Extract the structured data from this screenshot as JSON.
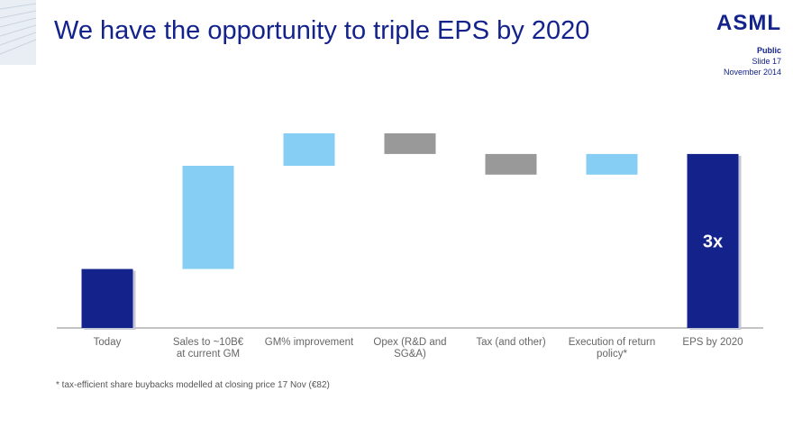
{
  "slide": {
    "title": "We have the opportunity to triple EPS by 2020",
    "logo": "ASML",
    "classification": "Public",
    "slide_number": "Slide 17",
    "date": "November 2014",
    "footnote": "* tax-efficient share buybacks modelled at closing price 17 Nov (€82)"
  },
  "colors": {
    "dark_blue": "#14238c",
    "light_blue": "#87cef5",
    "gray": "#999999",
    "axis": "#888888"
  },
  "chart_data": {
    "type": "bar",
    "subtype": "waterfall",
    "categories": [
      [
        "Today"
      ],
      [
        "Sales to ~10B€",
        "at current GM"
      ],
      [
        "GM% improvement"
      ],
      [
        "Opex (R&D and",
        "SG&A)"
      ],
      [
        "Tax (and other)"
      ],
      [
        "Execution of return",
        "policy*"
      ],
      [
        "EPS by 2020"
      ]
    ],
    "bars": [
      {
        "start": 0,
        "end": 1.0,
        "kind": "total"
      },
      {
        "start": 1.0,
        "end": 2.75,
        "kind": "increase"
      },
      {
        "start": 2.75,
        "end": 3.3,
        "kind": "increase"
      },
      {
        "start": 3.3,
        "end": 2.95,
        "kind": "decrease"
      },
      {
        "start": 2.95,
        "end": 2.6,
        "kind": "decrease"
      },
      {
        "start": 2.6,
        "end": 2.95,
        "kind": "increase"
      },
      {
        "start": 0,
        "end": 2.95,
        "kind": "total",
        "label": "3x"
      }
    ],
    "ylim": [
      0,
      3.3
    ],
    "title": "",
    "xlabel": "",
    "ylabel": "",
    "grid": false
  }
}
